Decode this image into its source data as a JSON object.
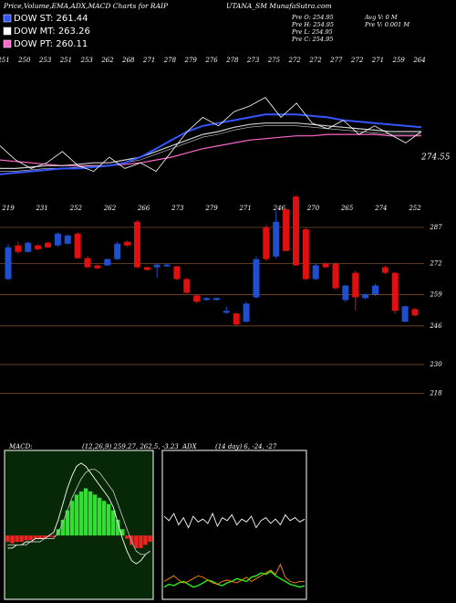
{
  "header": {
    "title": "Price,Volume,EMA,ADX,MACD Charts for RAIP",
    "site": "UTANA_SM MunafaSutra.com"
  },
  "legend": [
    {
      "label": "DOW ST: 261.44",
      "color": "#3355ff"
    },
    {
      "label": "DOW MT: 263.26",
      "color": "#ffffff"
    },
    {
      "label": "DOW PT: 260.11",
      "color": "#ff66cc"
    }
  ],
  "info": [
    "Pre O: 254.95",
    "Pre H: 254.95",
    "Pre L: 254.95",
    "Pre C: 254.95",
    "Avg V: 0  M",
    "Pre  V: 0.001 M"
  ],
  "chart_data": [
    {
      "type": "line",
      "top_labels": [
        "251",
        "250",
        "253",
        "251",
        "253",
        "262",
        "268",
        "271",
        "278",
        "279",
        "276",
        "278",
        "273",
        "275",
        "272",
        "272",
        "277",
        "272",
        "271",
        "259",
        "264"
      ],
      "last_label": "274.55",
      "ylim": [
        245,
        290
      ],
      "series": [
        {
          "name": "Price",
          "color": "#ffffff",
          "values": [
            258,
            253,
            250,
            252,
            256,
            251,
            249,
            254,
            250,
            252,
            249,
            256,
            263,
            268,
            265,
            270,
            272,
            275,
            268,
            273,
            266,
            264,
            267,
            262,
            265,
            262,
            259,
            263
          ]
        },
        {
          "name": "DOW ST",
          "color": "#3355ff",
          "values": [
            248,
            248.5,
            249,
            249.5,
            250,
            250,
            250.5,
            251,
            252,
            254,
            257,
            260,
            263,
            265,
            266,
            267,
            268,
            269,
            269,
            269,
            268.5,
            268,
            267,
            266.5,
            266,
            265.5,
            265,
            264.5
          ]
        },
        {
          "name": "DOW MT",
          "color": "#cccccc",
          "values": [
            250,
            250,
            250.5,
            251,
            251,
            251.5,
            252,
            252,
            253,
            254,
            256,
            258,
            260,
            262,
            263,
            264.5,
            265.5,
            266,
            266,
            266,
            265.5,
            265,
            264.5,
            264,
            263.5,
            263,
            263,
            263
          ]
        },
        {
          "name": "DOW PT",
          "color": "#ff66cc",
          "values": [
            253,
            252.5,
            252,
            251.5,
            251,
            251,
            251,
            251,
            251.5,
            252,
            253,
            254,
            255.5,
            257,
            258,
            259,
            260,
            260.5,
            261,
            261.5,
            261.5,
            262,
            262,
            262,
            262,
            261.5,
            261.5,
            261.5
          ]
        }
      ]
    },
    {
      "type": "candlestick",
      "top_labels": [
        "219",
        "231",
        "252",
        "262",
        "266",
        "273",
        "279",
        "271",
        "246",
        "270",
        "265",
        "274",
        "252"
      ],
      "ylim": [
        203,
        301
      ],
      "yticks": [
        287,
        272,
        259,
        246,
        230,
        218
      ],
      "up_color": "#1f4fd1",
      "down_color": "#e01010",
      "grid_color": "#7a4a2a",
      "open": [
        265.5,
        279.5,
        276.8,
        279.5,
        280.6,
        279.5,
        280.2,
        284.4,
        274.2,
        271.2,
        271.2,
        273.8,
        281,
        289.3,
        270.4,
        270.4,
        270.8,
        270.8,
        265.5,
        258.7,
        256.8,
        256.8,
        251.5,
        251.2,
        247.8,
        257.9,
        287,
        274.9,
        294.5,
        299.8,
        286.2,
        265.5,
        271.9,
        271.9,
        256.8,
        268.1,
        257.6,
        259.1,
        270.4,
        268.1,
        247.8,
        253
      ],
      "high": [
        280,
        281,
        281,
        280,
        281,
        285,
        284,
        285,
        275,
        271.5,
        274,
        281,
        281.5,
        290,
        270.8,
        272,
        272,
        271,
        266,
        259,
        258,
        257.8,
        254,
        251.5,
        256,
        275,
        288,
        293.8,
        295,
        300.2,
        287,
        272,
        272.5,
        272.5,
        263,
        269,
        259.5,
        263.5,
        271,
        268.5,
        254.5,
        253.5
      ],
      "low": [
        265,
        276,
        276.5,
        277.5,
        278.5,
        279,
        280,
        274,
        270,
        269.5,
        271,
        273.5,
        279,
        270,
        269,
        266,
        270.5,
        265,
        259.5,
        255.5,
        256.5,
        256.6,
        251,
        246,
        247.5,
        257.5,
        273,
        274,
        277,
        271,
        265,
        265,
        270,
        261,
        256,
        252.5,
        257,
        258.5,
        267.5,
        251,
        247.5,
        250
      ],
      "close": [
        278.7,
        276.8,
        280.6,
        277.9,
        278.7,
        284.4,
        283.6,
        274.2,
        270.4,
        270,
        273.8,
        280.2,
        279.5,
        270.4,
        269.3,
        271.5,
        271.5,
        265.5,
        259.8,
        256.1,
        257.6,
        257.6,
        252.3,
        246.6,
        255.3,
        273.8,
        273.8,
        289.3,
        277.2,
        271.2,
        265.5,
        271.2,
        270.4,
        261.7,
        262.8,
        257.9,
        259.1,
        262.8,
        268.1,
        252.3,
        254.2,
        250.4
      ]
    },
    {
      "type": "macd",
      "title": "MACD:",
      "params": "(12,26,9) 259.27, 262.5, -3.23",
      "ylim": [
        -20,
        25
      ],
      "pos_color": "#33dd33",
      "neg_color": "#ee2222",
      "histogram": [
        -2,
        -2.5,
        -2,
        -2,
        -1.5,
        -1.5,
        -1,
        -1,
        -1,
        -0.5,
        -0.5,
        2,
        5,
        8,
        11,
        13,
        14,
        15,
        14,
        13,
        12,
        11,
        10,
        8,
        5,
        2,
        -1,
        -3,
        -4,
        -4,
        -3,
        -2
      ],
      "series": [
        {
          "name": "MACD",
          "color": "#ffffff",
          "values": [
            -4,
            -4,
            -3,
            -3,
            -2,
            -2,
            -1,
            -1,
            -1,
            0,
            1,
            5,
            10,
            15,
            19,
            22,
            23,
            22,
            20,
            18,
            16,
            14,
            12,
            9,
            4,
            -1,
            -5,
            -8,
            -9,
            -8,
            -6,
            -5
          ]
        },
        {
          "name": "Signal",
          "color": "#bbbbbb",
          "values": [
            -3,
            -3,
            -3,
            -3,
            -3,
            -2,
            -2,
            -2,
            -1,
            -1,
            -1,
            1,
            4,
            8,
            12,
            15,
            18,
            20,
            21,
            21,
            20,
            18,
            16,
            14,
            10,
            6,
            2,
            -2,
            -5,
            -6,
            -6,
            -5
          ]
        }
      ]
    },
    {
      "type": "adx",
      "title": "ADX",
      "params": "(14 day) 6, -24, -27",
      "ylim": [
        0,
        100
      ],
      "series": [
        {
          "name": "ADX",
          "color": "#ffffff",
          "values": [
            58,
            55,
            60,
            52,
            57,
            50,
            58,
            54,
            56,
            53,
            60,
            51,
            57,
            55,
            59,
            52,
            56,
            54,
            58,
            50,
            55,
            57,
            53,
            56,
            52,
            59,
            55,
            57,
            54,
            56
          ]
        },
        {
          "name": "+DI",
          "color": "#22ee22",
          "values": [
            8,
            10,
            9,
            11,
            12,
            10,
            8,
            9,
            11,
            13,
            12,
            10,
            9,
            11,
            12,
            14,
            13,
            12,
            15,
            16,
            18,
            17,
            19,
            16,
            14,
            12,
            10,
            9,
            8,
            9
          ]
        },
        {
          "name": "-DI",
          "color": "#ff8800",
          "values": [
            12,
            14,
            16,
            13,
            11,
            12,
            14,
            16,
            15,
            13,
            11,
            10,
            12,
            13,
            12,
            11,
            13,
            15,
            12,
            14,
            16,
            18,
            20,
            17,
            24,
            15,
            12,
            11,
            12,
            12
          ]
        }
      ]
    }
  ]
}
